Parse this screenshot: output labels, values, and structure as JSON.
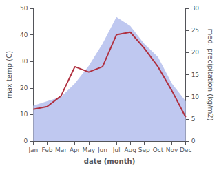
{
  "chart_data": {
    "type": "line",
    "xlabel": "date (month)",
    "ylabel": "max temp (C)",
    "y2label": "med. precipitation (kg/m2)",
    "categories": [
      "Jan",
      "Feb",
      "Mar",
      "Apr",
      "May",
      "Jun",
      "Jul",
      "Aug",
      "Sep",
      "Oct",
      "Nov",
      "Dec"
    ],
    "series": [
      {
        "type": "area",
        "axis": "y2",
        "color": "#bfc8f0",
        "values": [
          8,
          9,
          10,
          13,
          17,
          22,
          28,
          26,
          22,
          19,
          13,
          9
        ]
      },
      {
        "type": "line",
        "color": "#b03040",
        "values": [
          12,
          13,
          17,
          28,
          26,
          28,
          40,
          41,
          35,
          28,
          19,
          9
        ]
      }
    ],
    "ylim": [
      0,
      50
    ],
    "yticks": [
      0,
      10,
      20,
      30,
      40,
      50
    ],
    "y2lim": [
      0,
      30
    ],
    "y2ticks": [
      0,
      5,
      10,
      15,
      20,
      25,
      30
    ],
    "grid": false
  }
}
